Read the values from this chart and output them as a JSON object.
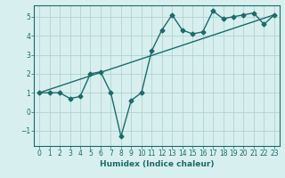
{
  "xlabel": "Humidex (Indice chaleur)",
  "ylabel": "",
  "bg_color": "#d7efee",
  "line_color": "#1a6b6b",
  "grid_color": "#a8cece",
  "x_values": [
    0,
    1,
    2,
    3,
    4,
    5,
    6,
    7,
    8,
    9,
    10,
    11,
    12,
    13,
    14,
    15,
    16,
    17,
    18,
    19,
    20,
    21,
    22,
    23
  ],
  "y_values": [
    1.0,
    1.0,
    1.0,
    0.7,
    0.8,
    2.0,
    2.1,
    1.0,
    -1.3,
    0.6,
    1.0,
    3.2,
    4.3,
    5.1,
    4.3,
    4.1,
    4.2,
    5.3,
    4.9,
    5.0,
    5.1,
    5.2,
    4.6,
    5.1
  ],
  "trend_x": [
    0,
    23
  ],
  "trend_y": [
    1.0,
    5.1
  ],
  "ylim": [
    -1.8,
    5.6
  ],
  "xlim": [
    -0.5,
    23.5
  ],
  "yticks": [
    -1,
    0,
    1,
    2,
    3,
    4,
    5
  ],
  "xticks": [
    0,
    1,
    2,
    3,
    4,
    5,
    6,
    7,
    8,
    9,
    10,
    11,
    12,
    13,
    14,
    15,
    16,
    17,
    18,
    19,
    20,
    21,
    22,
    23
  ],
  "marker": "D",
  "marker_size": 2.5,
  "line_width": 1.0,
  "tick_fontsize": 5.5,
  "xlabel_fontsize": 6.5
}
